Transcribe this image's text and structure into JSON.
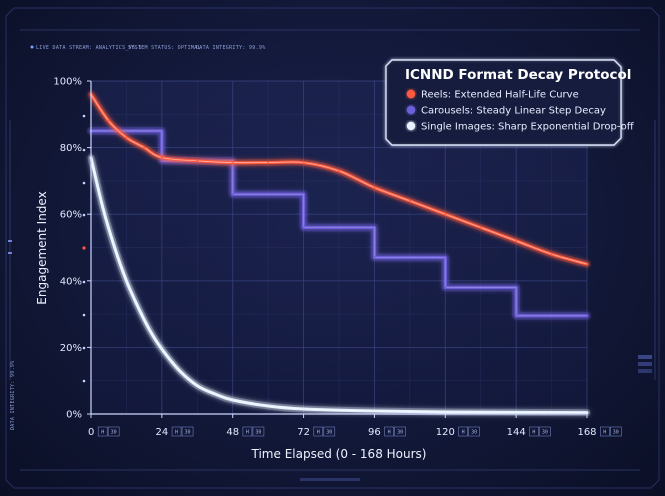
{
  "hud": {
    "stream": "LIVE DATA STREAM: ANALYTICS_V6.5",
    "status": "SYSTEM STATUS: OPTIMAL",
    "integrity": "DATA INTEGRITY: 99.9%",
    "side_integrity": "DATA INTEGRITY: 99.9%"
  },
  "chart_data": {
    "type": "line",
    "title": "ICNND Format Decay Protocol",
    "xlabel": "Time Elapsed (0 - 168 Hours)",
    "ylabel": "Engagement Index",
    "xlim": [
      0,
      168
    ],
    "ylim": [
      0,
      100
    ],
    "x_ticks": [
      0,
      24,
      48,
      72,
      96,
      120,
      144,
      168
    ],
    "x_tick_labels": [
      "0",
      "24",
      "48",
      "72",
      "96",
      "120",
      "144",
      "168"
    ],
    "x_tick_badge": {
      "h": "H",
      "n": "30"
    },
    "y_ticks": [
      0,
      20,
      40,
      60,
      80,
      100
    ],
    "y_tick_labels": [
      "0%",
      "20%",
      "40%",
      "60%",
      "80%",
      "100%"
    ],
    "grid": true,
    "legend_position": "top-right",
    "series": [
      {
        "name": "Reels: Extended Half-Life Curve",
        "color": "#ff5a3c",
        "style": "smooth",
        "x": [
          0,
          6,
          12,
          18,
          24,
          36,
          48,
          60,
          72,
          84,
          96,
          108,
          120,
          132,
          144,
          156,
          168
        ],
        "y": [
          96,
          88,
          83,
          80,
          77,
          76,
          75.5,
          75.5,
          75.5,
          73,
          68,
          64,
          60,
          56,
          52,
          48,
          45
        ]
      },
      {
        "name": "Carousels: Steady Linear Step Decay",
        "color": "#6d5fd8",
        "style": "step",
        "x": [
          0,
          24,
          48,
          72,
          96,
          120,
          144,
          168
        ],
        "y": [
          85,
          76,
          66,
          56,
          47,
          38,
          29.5,
          29.5
        ]
      },
      {
        "name": "Single Images: Sharp Exponential Drop-off",
        "color": "#e6f2ff",
        "style": "smooth",
        "x": [
          0,
          4,
          8,
          12,
          16,
          20,
          24,
          30,
          36,
          42,
          48,
          60,
          72,
          96,
          120,
          144,
          168
        ],
        "y": [
          77,
          62,
          50,
          40,
          32,
          25,
          19.5,
          13,
          8.5,
          6,
          4.2,
          2.4,
          1.5,
          0.9,
          0.6,
          0.5,
          0.4
        ]
      }
    ]
  }
}
